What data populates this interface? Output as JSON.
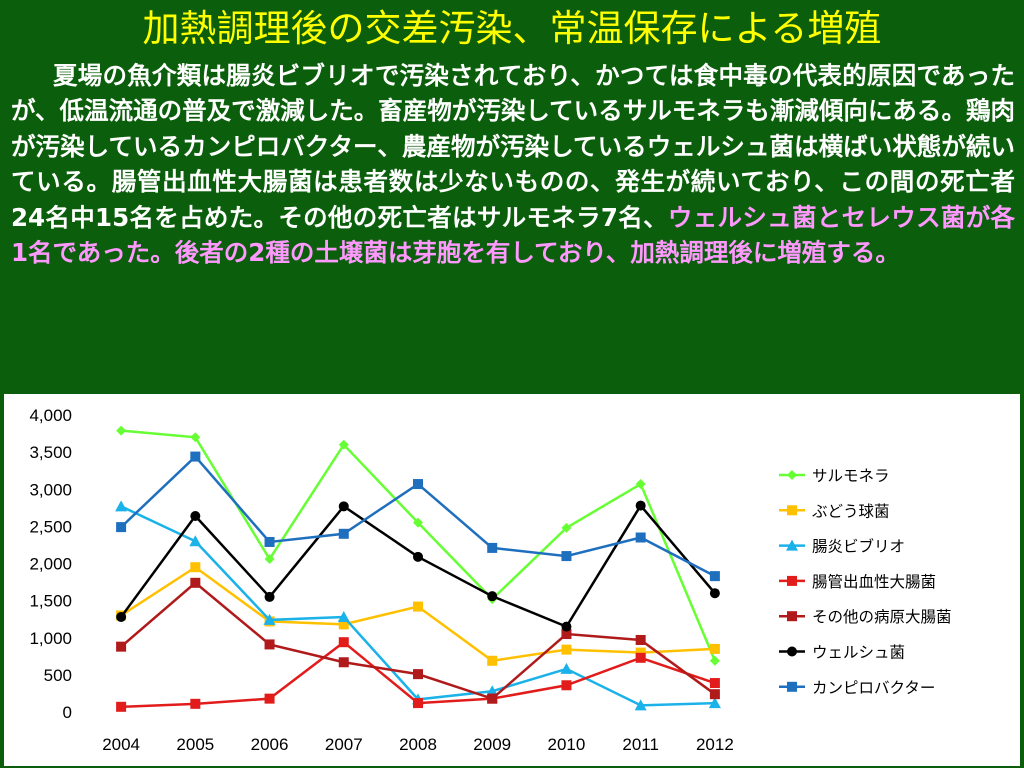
{
  "slide": {
    "title": "加熱調理後の交差汚染、常温保存による増殖",
    "body_white": "夏場の魚介類は腸炎ビブリオで汚染されており、かつては食中毒の代表的原因であったが、低温流通の普及で激減した。畜産物が汚染しているサルモネラも漸減傾向にある。鶏肉が汚染しているカンピロバクター、農産物が汚染しているウェルシュ菌は横ばい状態が続いている。腸管出血性大腸菌は患者数は少ないものの、発生が続いており、この間の死亡者24名中15名を占めた。その他の死亡者はサルモネラ7名、",
    "body_pink": "ウェルシュ菌とセレウス菌が各1名であった。後者の2種の土壌菌は芽胞を有しており、加熱調理後に増殖する。"
  },
  "colors": {
    "background": "#0b5e0b",
    "title": "#ffff00",
    "body_text": "#ffffff",
    "highlight": "#ff99ff"
  },
  "chart_data": {
    "type": "line",
    "title": "",
    "xlabel": "",
    "ylabel": "",
    "categories": [
      "2004",
      "2005",
      "2006",
      "2007",
      "2008",
      "2009",
      "2010",
      "2011",
      "2012"
    ],
    "ylim": [
      0,
      4000
    ],
    "yticks": [
      0,
      500,
      1000,
      1500,
      2000,
      2500,
      3000,
      3500,
      4000
    ],
    "ytick_labels": [
      "0",
      "500",
      "1,000",
      "1,500",
      "2,000",
      "2,500",
      "3,000",
      "3,500",
      "4,000"
    ],
    "grid": false,
    "legend_position": "right",
    "series": [
      {
        "name": "サルモネラ",
        "color": "#66ff33",
        "marker": "diamond",
        "values": [
          3790,
          3700,
          2060,
          3600,
          2550,
          1520,
          2480,
          3070,
          690
        ]
      },
      {
        "name": "ぶどう球菌",
        "color": "#ffc000",
        "marker": "square",
        "values": [
          1300,
          1950,
          1220,
          1180,
          1420,
          690,
          840,
          800,
          850
        ]
      },
      {
        "name": "腸炎ビブリオ",
        "color": "#1ab2e8",
        "marker": "triangle",
        "values": [
          2770,
          2300,
          1240,
          1280,
          170,
          280,
          580,
          90,
          120
        ]
      },
      {
        "name": "腸管出血性大腸菌",
        "color": "#e21b1b",
        "marker": "square",
        "values": [
          70,
          110,
          180,
          940,
          120,
          180,
          360,
          730,
          390
        ]
      },
      {
        "name": "その他の病原大腸菌",
        "color": "#b01a1a",
        "marker": "square",
        "values": [
          880,
          1740,
          910,
          670,
          510,
          180,
          1050,
          970,
          240
        ]
      },
      {
        "name": "ウェルシュ菌",
        "color": "#000000",
        "marker": "circle",
        "values": [
          1280,
          2640,
          1550,
          2770,
          2090,
          1560,
          1150,
          2780,
          1600
        ]
      },
      {
        "name": "カンピロバクター",
        "color": "#1f6fbf",
        "marker": "square",
        "values": [
          2490,
          3440,
          2290,
          2400,
          3070,
          2210,
          2100,
          2350,
          1830
        ]
      }
    ]
  }
}
